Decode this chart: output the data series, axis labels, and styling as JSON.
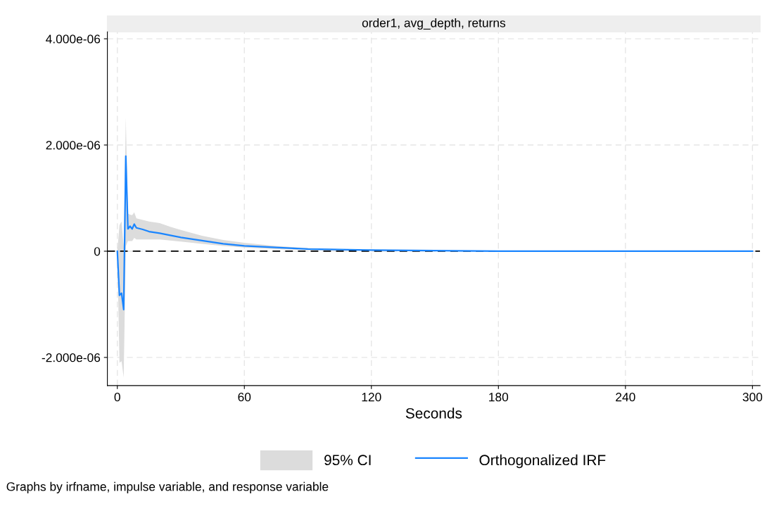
{
  "chart_data": {
    "type": "line",
    "title": "order1, avg_depth, returns",
    "xlabel": "Seconds",
    "x": [
      0,
      1,
      2,
      3,
      4,
      5,
      6,
      7,
      8,
      9,
      10,
      12,
      15,
      20,
      25,
      30,
      40,
      50,
      60,
      75,
      90,
      105,
      120,
      150,
      180,
      240,
      300
    ],
    "series": [
      {
        "name": "Orthogonalized IRF",
        "color": "#1a85ff",
        "values": [
          0,
          -8.3e-07,
          -7.9e-07,
          -1.1e-06,
          1.79e-06,
          4.2e-07,
          4.7e-07,
          4.2e-07,
          5.1e-07,
          4.4e-07,
          4.3e-07,
          4.1e-07,
          3.7e-07,
          3.4e-07,
          3e-07,
          2.6e-07,
          2e-07,
          1.4e-07,
          1e-07,
          7e-08,
          4e-08,
          3e-08,
          2e-08,
          1e-08,
          0,
          0,
          0
        ],
        "lower": [
          0,
          -2.1e-06,
          -2.07e-06,
          -2.38e-06,
          9e-08,
          1.9e-07,
          1.9e-07,
          1.9e-07,
          2.5e-07,
          2.2e-07,
          2.2e-07,
          2.2e-07,
          2.2e-07,
          2.2e-07,
          2e-07,
          1.8e-07,
          1.4e-07,
          1e-07,
          7e-08,
          4e-08,
          2e-08,
          1e-08,
          1e-08,
          0,
          0,
          0,
          0
        ],
        "upper": [
          0,
          4.9e-07,
          5.6e-07,
          9e-08,
          2.52e-06,
          7.1e-07,
          6.9e-07,
          6.8e-07,
          7.3e-07,
          6.2e-07,
          6.1e-07,
          5.9e-07,
          5.6e-07,
          5.3e-07,
          4.6e-07,
          4e-07,
          2.9e-07,
          2.1e-07,
          1.6e-07,
          1e-07,
          6e-08,
          4e-08,
          2e-08,
          1e-08,
          0,
          0,
          0
        ]
      }
    ],
    "xlim": [
      -4.7,
      303.6
    ],
    "xticks": [
      0,
      60,
      120,
      180,
      240,
      300
    ],
    "ylim": [
      -2.53e-06,
      4.13e-06
    ],
    "yticks": [
      {
        "value": -2e-06,
        "label": "-2.000e-06"
      },
      {
        "value": 0,
        "label": "0"
      },
      {
        "value": 2e-06,
        "label": "2.000e-06"
      },
      {
        "value": 4e-06,
        "label": "4.000e-06"
      }
    ],
    "ref_lines": [
      {
        "axis": "y",
        "value": 0,
        "color": "#000000",
        "line_style": "dashed"
      }
    ],
    "grid": true,
    "legend": "bottom",
    "annotations": [
      "95% CI",
      "Graphs by irfname, impulse variable, and response variable"
    ]
  }
}
